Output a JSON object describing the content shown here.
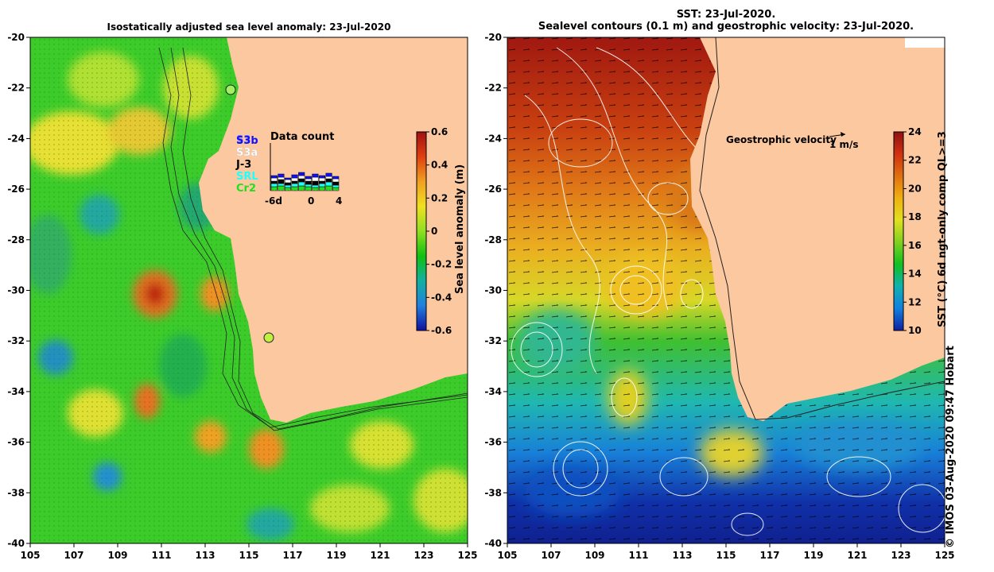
{
  "left_map": {
    "title": "Isostatically adjusted sea level anomaly: 23-Jul-2020",
    "lon_ticks": [
      "105",
      "107",
      "109",
      "111",
      "113",
      "115",
      "117",
      "119",
      "121",
      "123",
      "125"
    ],
    "lat_ticks": [
      "-20",
      "-22",
      "-24",
      "-26",
      "-28",
      "-30",
      "-32",
      "-34",
      "-36",
      "-38",
      "-40"
    ],
    "colorbar": {
      "label": "Sea level anomaly (m)",
      "ticks": [
        "0.6",
        "0.4",
        "0.2",
        "0",
        "-0.2",
        "-0.4",
        "-0.6"
      ],
      "colors": [
        "#a01010",
        "#e04010",
        "#f0a020",
        "#f0e020",
        "#90e020",
        "#10c010",
        "#10b0a0",
        "#2080e0",
        "#1010a0"
      ]
    },
    "legend": {
      "title": "Data count",
      "satellites": [
        {
          "name": "S3b",
          "color": "#1010ff"
        },
        {
          "name": "S3a",
          "color": "#ffffff"
        },
        {
          "name": "J-3",
          "color": "#000000"
        },
        {
          "name": "SRL",
          "color": "#20ffff"
        },
        {
          "name": "Cr2",
          "color": "#20e020"
        }
      ],
      "overlap_label": "S3",
      "axis_ticks": [
        "-6d",
        "0",
        "4"
      ]
    }
  },
  "right_map": {
    "title_line1": "SST: 23-Jul-2020.",
    "title_line2": "Sealevel contours (0.1 m) and geostrophic velocity: 23-Jul-2020.",
    "lon_ticks": [
      "105",
      "107",
      "109",
      "111",
      "113",
      "115",
      "117",
      "119",
      "121",
      "123",
      "125"
    ],
    "lat_ticks": [
      "-20",
      "-22",
      "-24",
      "-26",
      "-28",
      "-30",
      "-32",
      "-34",
      "-36",
      "-38",
      "-40"
    ],
    "velocity_label": "Geostrophic velocity",
    "velocity_scale": "1 m/s",
    "colorbar": {
      "label": "SST (°C) 6d ngt-only comp QL>=3",
      "ticks": [
        "24",
        "22",
        "20",
        "18",
        "16",
        "14",
        "12",
        "10"
      ],
      "colors": [
        "#901010",
        "#d03010",
        "#e07010",
        "#f0b010",
        "#e0e020",
        "#80d020",
        "#10c020",
        "#10b0b0",
        "#1080e0",
        "#1020a0"
      ]
    }
  },
  "credit": "© IMOS 03-Aug-2020 09:47 Hobart"
}
